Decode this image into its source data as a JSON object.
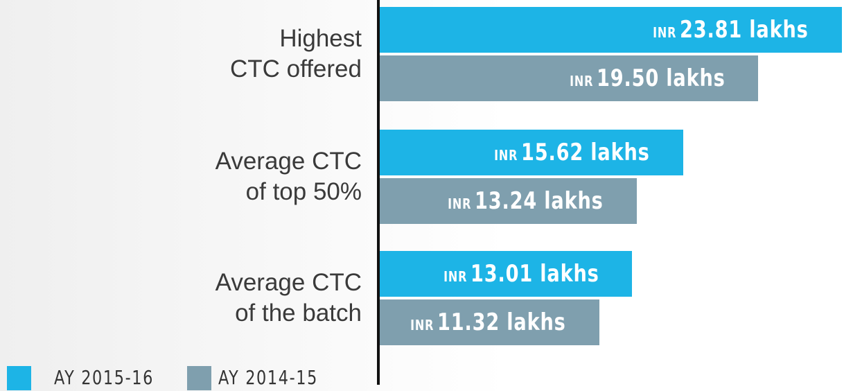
{
  "chart_data": {
    "type": "bar",
    "orientation": "horizontal",
    "categories": [
      "Highest\nCTC offered",
      "Average CTC\nof top 50%",
      "Average CTC\nof the batch"
    ],
    "series": [
      {
        "name": "AY 2015-16",
        "color": "#1db4e6",
        "values": [
          23.81,
          15.62,
          13.01
        ],
        "value_labels": [
          "INR 23.81 lakhs",
          "INR 15.62 lakhs",
          "INR 13.01 lakhs"
        ]
      },
      {
        "name": "AY 2014-15",
        "color": "#7f9fae",
        "values": [
          19.5,
          13.24,
          11.32
        ],
        "value_labels": [
          "INR 19.50 lakhs",
          "INR 13.24 lakhs",
          "INR 11.32 lakhs"
        ]
      }
    ]
  }
}
